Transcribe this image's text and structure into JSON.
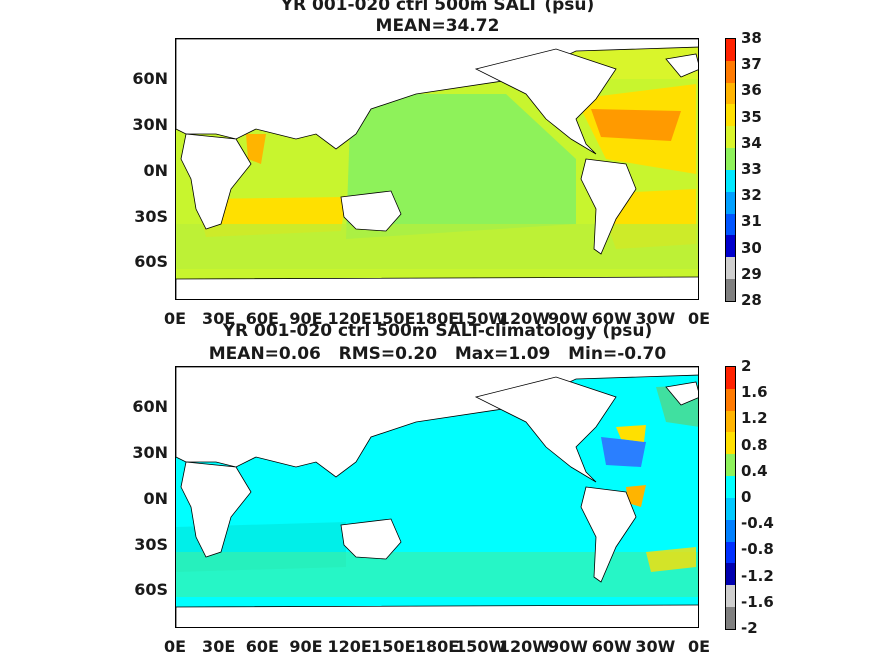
{
  "panels": [
    {
      "title_line1": "YR 001-020 ctrl 500m SALT (psu)",
      "title_line2": "MEAN=34.72",
      "y_ticks": [
        "60N",
        "30N",
        "0N",
        "30S",
        "60S"
      ],
      "x_ticks": [
        "0E",
        "30E",
        "60E",
        "90E",
        "120E",
        "150E",
        "180E",
        "150W",
        "120W",
        "90W",
        "60W",
        "30W",
        "0E"
      ],
      "colorbar_ticks": [
        "38",
        "37",
        "36",
        "35",
        "34",
        "33",
        "32",
        "31",
        "30",
        "29",
        "28"
      ],
      "colorbar_colors": [
        "#ff2200",
        "#ff7a00",
        "#ffb400",
        "#ffe000",
        "#d9f52b",
        "#8ef25a",
        "#00e8ff",
        "#00a0ff",
        "#0055ff",
        "#0000cc",
        "#cfcfcf",
        "#808080"
      ],
      "ocean_color": "#c8f52e"
    },
    {
      "title_line1": "YR 001-020 ctrl 500m SALT-climatology (psu)",
      "title_line2": "MEAN=0.06   RMS=0.20   Max=1.09   Min=-0.70",
      "y_ticks": [
        "60N",
        "30N",
        "0N",
        "30S",
        "60S"
      ],
      "x_ticks": [
        "0E",
        "30E",
        "60E",
        "90E",
        "120E",
        "150E",
        "180E",
        "150W",
        "120W",
        "90W",
        "60W",
        "30W",
        "0E"
      ],
      "colorbar_ticks": [
        "2",
        "1.6",
        "1.2",
        "0.8",
        "0.4",
        "0",
        "-0.4",
        "-0.8",
        "-1.2",
        "-1.6",
        "-2"
      ],
      "colorbar_colors": [
        "#ff2200",
        "#ff7a00",
        "#ffb400",
        "#ffe000",
        "#8ef25a",
        "#00ffff",
        "#00c8ff",
        "#0080ff",
        "#0030ff",
        "#0000b0",
        "#cfcfcf",
        "#808080"
      ],
      "ocean_color": "#00ffff"
    }
  ]
}
